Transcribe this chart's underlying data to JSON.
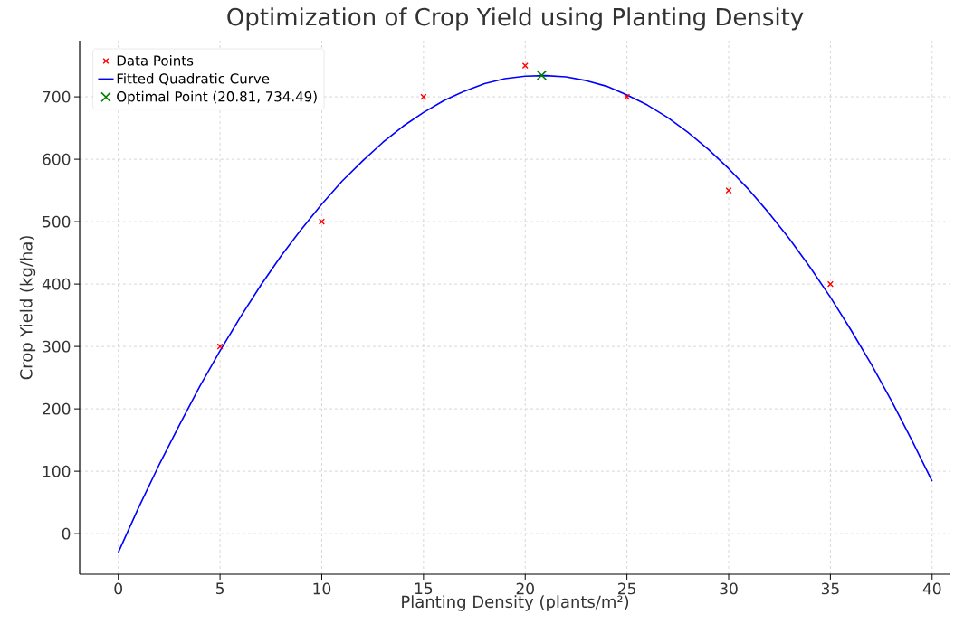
{
  "chart_data": {
    "type": "scatter",
    "title": "Optimization of Crop Yield using Planting Density",
    "xlabel": "Planting Density (plants/m²)",
    "ylabel": "Crop Yield (kg/ha)",
    "xlim": [
      -1.9,
      40.9
    ],
    "ylim": [
      -65,
      790
    ],
    "xticks": [
      0,
      5,
      10,
      15,
      20,
      25,
      30,
      35,
      40
    ],
    "yticks": [
      0,
      100,
      200,
      300,
      400,
      500,
      600,
      700
    ],
    "grid": true,
    "legend": "top left",
    "series": [
      {
        "name": "Data Points",
        "marker": "cross",
        "color": "#ff0000",
        "x": [
          5,
          10,
          15,
          20,
          25,
          30,
          35
        ],
        "values": [
          300,
          500,
          700,
          750,
          700,
          550,
          400
        ]
      },
      {
        "name": "Fitted Quadratic Curve",
        "type": "line",
        "marker": "none",
        "line_style": "solid",
        "color": "#0000ff",
        "x": [
          0,
          1,
          2,
          3,
          4,
          5,
          6,
          7,
          8,
          9,
          10,
          11,
          12,
          13,
          14,
          15,
          16,
          17,
          18,
          19,
          20,
          21,
          22,
          23,
          24,
          25,
          26,
          27,
          28,
          29,
          30,
          31,
          32,
          33,
          34,
          35,
          36,
          37,
          38,
          39,
          40
        ],
        "values": [
          -30,
          42,
          110,
          174,
          236,
          293,
          347,
          398,
          445,
          488,
          528,
          565,
          597,
          627,
          653,
          675,
          694,
          709,
          721,
          729,
          733,
          734,
          732,
          726,
          717,
          703,
          687,
          667,
          643,
          616,
          585,
          551,
          513,
          472,
          427,
          379,
          327,
          272,
          213,
          150,
          84
        ]
      },
      {
        "name": "Optimal Point (20.81, 734.49)",
        "marker": "cross",
        "color": "#008000",
        "x": [
          20.81
        ],
        "values": [
          734.49
        ]
      }
    ]
  }
}
